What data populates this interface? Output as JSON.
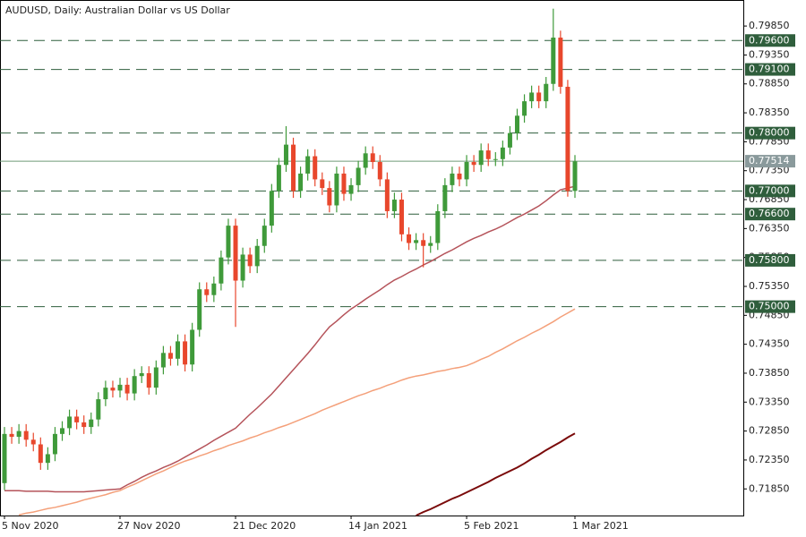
{
  "chart_data": {
    "type": "candlestick",
    "title": "AUDUSD, Daily:  Australian Dollar vs US Dollar",
    "categories": [
      "5 Nov 2020",
      null,
      null,
      null,
      null,
      null,
      null,
      null,
      null,
      null,
      null,
      null,
      null,
      null,
      null,
      null,
      "27 Nov 2020",
      null,
      null,
      null,
      null,
      null,
      null,
      null,
      null,
      null,
      null,
      null,
      null,
      null,
      null,
      null,
      "21 Dec 2020",
      null,
      null,
      null,
      null,
      null,
      null,
      null,
      null,
      null,
      null,
      null,
      null,
      null,
      null,
      null,
      "14 Jan 2021",
      null,
      null,
      null,
      null,
      null,
      null,
      null,
      null,
      null,
      null,
      null,
      null,
      null,
      null,
      null,
      "5 Feb 2021",
      null,
      null,
      null,
      null,
      null,
      null,
      null,
      null,
      null,
      null,
      null,
      null,
      null,
      null,
      "1 Mar 2021"
    ],
    "open": [
      0.7195,
      0.728,
      0.7275,
      0.7285,
      0.727,
      0.7262,
      0.723,
      0.7245,
      0.728,
      0.729,
      0.731,
      0.73,
      0.7292,
      0.7305,
      0.734,
      0.736,
      0.7355,
      0.7365,
      0.735,
      0.738,
      0.7385,
      0.736,
      0.7395,
      0.742,
      0.741,
      0.744,
      0.74,
      0.746,
      0.753,
      0.752,
      0.754,
      0.7585,
      0.764,
      0.7545,
      0.759,
      0.757,
      0.7605,
      0.764,
      0.77,
      0.7745,
      0.778,
      0.77,
      0.773,
      0.776,
      0.772,
      0.7705,
      0.7675,
      0.773,
      0.7695,
      0.771,
      0.774,
      0.7765,
      0.775,
      0.772,
      0.7665,
      0.7685,
      0.7625,
      0.761,
      0.7615,
      0.7605,
      0.761,
      0.7665,
      0.771,
      0.773,
      0.772,
      0.775,
      0.7745,
      0.777,
      0.7755,
      0.7755,
      0.7775,
      0.78,
      0.783,
      0.7855,
      0.787,
      0.7855,
      0.7885,
      0.7965,
      0.788,
      0.77
    ],
    "high": [
      0.7292,
      0.7292,
      0.7297,
      0.7297,
      0.7282,
      0.7274,
      0.7257,
      0.7292,
      0.7302,
      0.7322,
      0.7322,
      0.7312,
      0.7317,
      0.7352,
      0.7372,
      0.7372,
      0.7377,
      0.7377,
      0.7392,
      0.7397,
      0.7397,
      0.7407,
      0.7432,
      0.7432,
      0.7452,
      0.7452,
      0.7472,
      0.7542,
      0.7542,
      0.7552,
      0.7597,
      0.7652,
      0.7652,
      0.7602,
      0.7602,
      0.7617,
      0.7652,
      0.7712,
      0.7757,
      0.7812,
      0.7792,
      0.7742,
      0.7772,
      0.7772,
      0.7732,
      0.7717,
      0.7742,
      0.7742,
      0.7722,
      0.7752,
      0.7777,
      0.7777,
      0.7762,
      0.7732,
      0.7697,
      0.7697,
      0.7637,
      0.7627,
      0.7627,
      0.7622,
      0.7677,
      0.7722,
      0.7742,
      0.7742,
      0.7762,
      0.7762,
      0.7782,
      0.7782,
      0.7767,
      0.7787,
      0.7812,
      0.7842,
      0.7867,
      0.7882,
      0.7882,
      0.7897,
      0.8015,
      0.7977,
      0.7892,
      0.7762
    ],
    "low": [
      0.7183,
      0.7263,
      0.7263,
      0.7258,
      0.725,
      0.7218,
      0.7218,
      0.7233,
      0.7268,
      0.7278,
      0.7288,
      0.728,
      0.728,
      0.7293,
      0.7328,
      0.7343,
      0.7343,
      0.7338,
      0.7338,
      0.7368,
      0.7348,
      0.7348,
      0.7383,
      0.7398,
      0.7398,
      0.7388,
      0.7388,
      0.7448,
      0.7508,
      0.7508,
      0.7528,
      0.7573,
      0.7465,
      0.7533,
      0.7558,
      0.7558,
      0.7593,
      0.7628,
      0.7688,
      0.7733,
      0.7688,
      0.7688,
      0.7718,
      0.7708,
      0.7693,
      0.7663,
      0.7663,
      0.7683,
      0.7683,
      0.7698,
      0.7728,
      0.7738,
      0.7708,
      0.7653,
      0.7653,
      0.7613,
      0.7598,
      0.7598,
      0.7568,
      0.7593,
      0.7598,
      0.7653,
      0.7698,
      0.7708,
      0.7708,
      0.7733,
      0.7733,
      0.7743,
      0.7743,
      0.7743,
      0.7763,
      0.7788,
      0.7818,
      0.7843,
      0.7843,
      0.7843,
      0.7873,
      0.7868,
      0.769,
      0.7688
    ],
    "close": [
      0.728,
      0.7275,
      0.7285,
      0.727,
      0.7262,
      0.723,
      0.7245,
      0.728,
      0.729,
      0.731,
      0.73,
      0.7292,
      0.7305,
      0.734,
      0.736,
      0.7355,
      0.7365,
      0.735,
      0.738,
      0.7385,
      0.736,
      0.7395,
      0.742,
      0.741,
      0.744,
      0.74,
      0.746,
      0.753,
      0.752,
      0.754,
      0.7585,
      0.764,
      0.7545,
      0.759,
      0.757,
      0.7605,
      0.764,
      0.77,
      0.7745,
      0.778,
      0.77,
      0.773,
      0.776,
      0.772,
      0.7705,
      0.7675,
      0.773,
      0.7695,
      0.771,
      0.774,
      0.7765,
      0.775,
      0.772,
      0.7665,
      0.7685,
      0.7625,
      0.761,
      0.7615,
      0.7605,
      0.761,
      0.7665,
      0.771,
      0.773,
      0.772,
      0.775,
      0.7745,
      0.777,
      0.7755,
      0.7755,
      0.7775,
      0.78,
      0.783,
      0.7855,
      0.787,
      0.7855,
      0.7885,
      0.7965,
      0.788,
      0.77,
      0.7751
    ],
    "up_color": "#3f9a3a",
    "down_color": "#e8472c",
    "series": [
      {
        "color": "#b5535a",
        "values": [
          0.7182,
          0.7182,
          0.7182,
          0.7181,
          0.7181,
          0.7181,
          0.7181,
          0.718,
          0.718,
          0.718,
          0.718,
          0.718,
          0.7181,
          0.7182,
          0.7183,
          0.7184,
          0.7185,
          0.7192,
          0.7198,
          0.7205,
          0.7211,
          0.7216,
          0.7222,
          0.7227,
          0.7233,
          0.724,
          0.7247,
          0.7254,
          0.7261,
          0.7269,
          0.7276,
          0.7283,
          0.729,
          0.7302,
          0.7314,
          0.7325,
          0.7337,
          0.7349,
          0.7363,
          0.7377,
          0.7391,
          0.7405,
          0.7419,
          0.7434,
          0.745,
          0.7465,
          0.7475,
          0.7486,
          0.7496,
          0.7504,
          0.7513,
          0.7521,
          0.7529,
          0.7538,
          0.7546,
          0.7552,
          0.7559,
          0.7565,
          0.7572,
          0.7578,
          0.7585,
          0.7592,
          0.7598,
          0.7605,
          0.7612,
          0.7618,
          0.7623,
          0.7629,
          0.7634,
          0.764,
          0.7647,
          0.7654,
          0.766,
          0.7667,
          0.7674,
          0.7683,
          0.7693,
          0.7702,
          0.7705,
          0.7708
        ]
      },
      {
        "color": "#f4a07a",
        "values": [
          null,
          null,
          0.714,
          0.7143,
          0.7145,
          0.7148,
          0.7151,
          0.7153,
          0.7156,
          0.7159,
          0.7162,
          0.7166,
          0.7169,
          0.7172,
          0.7175,
          0.7179,
          0.7182,
          0.7188,
          0.7193,
          0.7199,
          0.7205,
          0.7211,
          0.7216,
          0.7222,
          0.7228,
          0.7233,
          0.7237,
          0.7242,
          0.7246,
          0.7251,
          0.7255,
          0.726,
          0.7264,
          0.7268,
          0.7273,
          0.7277,
          0.7282,
          0.7286,
          0.7291,
          0.7295,
          0.73,
          0.7305,
          0.731,
          0.7315,
          0.7321,
          0.7326,
          0.7331,
          0.7336,
          0.7341,
          0.7346,
          0.735,
          0.7355,
          0.7359,
          0.7364,
          0.7368,
          0.7373,
          0.7377,
          0.738,
          0.7382,
          0.7385,
          0.7388,
          0.739,
          0.7393,
          0.7395,
          0.7398,
          0.7403,
          0.7409,
          0.7414,
          0.7421,
          0.7427,
          0.7434,
          0.7441,
          0.7447,
          0.7454,
          0.746,
          0.7467,
          0.7474,
          0.7482,
          0.7489,
          0.7496
        ]
      },
      {
        "color": "#7a0a0a",
        "values": [
          null,
          null,
          null,
          null,
          null,
          null,
          null,
          null,
          null,
          null,
          null,
          null,
          null,
          null,
          null,
          null,
          null,
          null,
          null,
          null,
          null,
          null,
          null,
          null,
          null,
          null,
          null,
          null,
          null,
          null,
          null,
          null,
          null,
          null,
          null,
          null,
          null,
          null,
          null,
          null,
          null,
          null,
          null,
          null,
          null,
          null,
          null,
          null,
          null,
          null,
          null,
          null,
          null,
          null,
          null,
          null,
          null,
          0.7139,
          0.7145,
          0.715,
          0.7156,
          0.7162,
          0.7168,
          0.7173,
          0.7179,
          0.7185,
          0.7191,
          0.7197,
          0.7204,
          0.721,
          0.7216,
          0.7222,
          0.7229,
          0.7237,
          0.7244,
          0.7252,
          0.7259,
          0.7266,
          0.7274,
          0.7281
        ]
      }
    ],
    "ylim": [
      0.7139,
      0.803
    ],
    "yticks": [
      {
        "value": 0.7185,
        "label": "0.71850"
      },
      {
        "value": 0.7235,
        "label": "0.72350"
      },
      {
        "value": 0.7285,
        "label": "0.72850"
      },
      {
        "value": 0.7335,
        "label": "0.73350"
      },
      {
        "value": 0.7385,
        "label": "0.73850"
      },
      {
        "value": 0.7435,
        "label": "0.74350"
      },
      {
        "value": 0.7485,
        "label": "0.74850"
      },
      {
        "value": 0.7535,
        "label": "0.75350"
      },
      {
        "value": 0.7585,
        "label": "0.75850"
      },
      {
        "value": 0.7635,
        "label": "0.76350"
      },
      {
        "value": 0.7685,
        "label": "0.76850"
      },
      {
        "value": 0.7735,
        "label": "0.77350"
      },
      {
        "value": 0.7785,
        "label": "0.77850"
      },
      {
        "value": 0.7835,
        "label": "0.78350"
      },
      {
        "value": 0.7885,
        "label": "0.78850"
      },
      {
        "value": 0.7935,
        "label": "0.79350"
      },
      {
        "value": 0.7985,
        "label": "0.79850"
      }
    ],
    "levels": [
      {
        "value": 0.796,
        "label": "0.79600"
      },
      {
        "value": 0.791,
        "label": "0.79100"
      },
      {
        "value": 0.78,
        "label": "0.78000"
      },
      {
        "value": 0.77,
        "label": "0.77000"
      },
      {
        "value": 0.766,
        "label": "0.76600"
      },
      {
        "value": 0.758,
        "label": "0.75800"
      },
      {
        "value": 0.75,
        "label": "0.75000"
      }
    ],
    "levels_color": "#2f5e3c",
    "current_price": 0.77514,
    "current_color": "#8a9a9c"
  }
}
